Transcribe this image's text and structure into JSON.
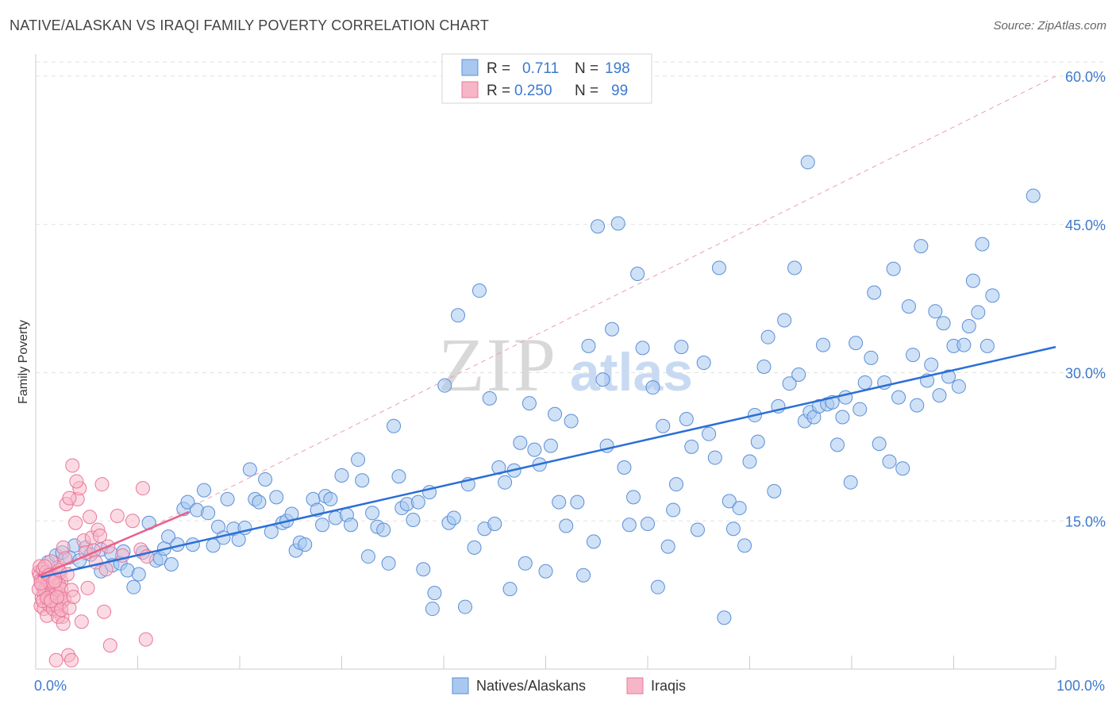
{
  "title": "NATIVE/ALASKAN VS IRAQI FAMILY POVERTY CORRELATION CHART",
  "source": "Source: ZipAtlas.com",
  "watermark": {
    "zip": "ZIP",
    "atlas": "atlas"
  },
  "colors": {
    "blue_fill": "#a8c8f0",
    "blue_stroke": "#5b8fd6",
    "blue_line": "#2a6fd6",
    "pink_fill": "#f7b6c8",
    "pink_stroke": "#e8789a",
    "pink_line": "#e8608a",
    "axis_label": "#3d79cf",
    "grid": "#e2e2e2",
    "ref_line": "#e8a0b0"
  },
  "legend": {
    "rows": [
      {
        "r_label": "R =",
        "r_value": "0.711",
        "n_label": "N =",
        "n_value": "198",
        "series": "blue"
      },
      {
        "r_label": "R =",
        "r_value": "0.250",
        "n_label": "N =",
        "n_value": "99",
        "series": "pink"
      }
    ]
  },
  "bottom_legend": [
    "Natives/Alaskans",
    "Iraqis"
  ],
  "chart_data": {
    "type": "scatter",
    "xlabel": "",
    "ylabel": "Family Poverty",
    "xlim": [
      0,
      100
    ],
    "ylim": [
      0,
      60
    ],
    "x_ticks": [
      0,
      10,
      20,
      30,
      40,
      50,
      60,
      70,
      80,
      90,
      100
    ],
    "x_tick_labels": [
      {
        "value": 0,
        "label": "0.0%"
      },
      {
        "value": 100,
        "label": "100.0%"
      }
    ],
    "y_ticks": [
      {
        "value": 15,
        "label": "15.0%"
      },
      {
        "value": 30,
        "label": "30.0%"
      },
      {
        "value": 45,
        "label": "45.0%"
      },
      {
        "value": 60,
        "label": "60.0%"
      }
    ],
    "grid": true,
    "legend_position": "top-center",
    "reference_line": {
      "style": "dashed",
      "from": [
        0,
        8.6
      ],
      "to": [
        100,
        60
      ]
    },
    "series": [
      {
        "name": "Natives/Alaskans",
        "color": "#a8c8f0",
        "trend": {
          "from": [
            0.5,
            9.3
          ],
          "to": [
            100,
            32.6
          ]
        },
        "points": [
          [
            1.2,
            10.8
          ],
          [
            2.0,
            11.5
          ],
          [
            2.6,
            11.8
          ],
          [
            3.3,
            11.3
          ],
          [
            3.8,
            12.5
          ],
          [
            4.3,
            11.0
          ],
          [
            4.9,
            12.3
          ],
          [
            5.4,
            11.6
          ],
          [
            6.4,
            12.1
          ],
          [
            6.4,
            9.9
          ],
          [
            7.4,
            11.7
          ],
          [
            7.5,
            10.5
          ],
          [
            8.3,
            10.7
          ],
          [
            8.6,
            11.9
          ],
          [
            9.0,
            10.0
          ],
          [
            9.6,
            8.3
          ],
          [
            10.1,
            9.6
          ],
          [
            10.5,
            11.8
          ],
          [
            11.1,
            14.8
          ],
          [
            11.8,
            11.0
          ],
          [
            12.2,
            11.2
          ],
          [
            12.6,
            12.2
          ],
          [
            13.0,
            13.4
          ],
          [
            13.3,
            10.6
          ],
          [
            13.9,
            12.6
          ],
          [
            14.5,
            16.2
          ],
          [
            14.9,
            16.9
          ],
          [
            15.4,
            12.6
          ],
          [
            15.8,
            16.1
          ],
          [
            16.5,
            18.1
          ],
          [
            16.9,
            15.8
          ],
          [
            17.4,
            12.5
          ],
          [
            17.9,
            14.4
          ],
          [
            18.4,
            13.3
          ],
          [
            18.8,
            17.2
          ],
          [
            19.4,
            14.2
          ],
          [
            19.9,
            13.1
          ],
          [
            20.5,
            14.3
          ],
          [
            21.0,
            20.2
          ],
          [
            21.5,
            17.2
          ],
          [
            21.9,
            16.9
          ],
          [
            22.5,
            19.2
          ],
          [
            23.1,
            13.9
          ],
          [
            23.6,
            17.4
          ],
          [
            24.2,
            14.8
          ],
          [
            24.6,
            15.0
          ],
          [
            25.1,
            15.7
          ],
          [
            25.5,
            12.0
          ],
          [
            25.9,
            12.8
          ],
          [
            26.4,
            12.6
          ],
          [
            27.2,
            17.2
          ],
          [
            27.6,
            16.1
          ],
          [
            28.1,
            14.6
          ],
          [
            28.4,
            17.5
          ],
          [
            28.9,
            17.2
          ],
          [
            29.4,
            15.3
          ],
          [
            30.0,
            19.6
          ],
          [
            30.5,
            15.6
          ],
          [
            30.9,
            14.6
          ],
          [
            31.6,
            21.2
          ],
          [
            32.0,
            19.1
          ],
          [
            32.6,
            11.4
          ],
          [
            33.0,
            15.8
          ],
          [
            33.5,
            14.4
          ],
          [
            34.1,
            14.1
          ],
          [
            34.6,
            10.7
          ],
          [
            35.1,
            24.6
          ],
          [
            35.6,
            19.5
          ],
          [
            35.9,
            16.3
          ],
          [
            36.4,
            16.7
          ],
          [
            37.0,
            15.1
          ],
          [
            37.5,
            16.9
          ],
          [
            38.0,
            10.1
          ],
          [
            38.6,
            17.9
          ],
          [
            39.1,
            7.7
          ],
          [
            38.9,
            6.1
          ],
          [
            40.1,
            28.7
          ],
          [
            40.5,
            14.8
          ],
          [
            41.0,
            15.3
          ],
          [
            41.4,
            35.8
          ],
          [
            42.1,
            6.3
          ],
          [
            42.4,
            18.7
          ],
          [
            43.0,
            12.3
          ],
          [
            43.5,
            38.3
          ],
          [
            44.0,
            14.2
          ],
          [
            44.5,
            27.4
          ],
          [
            45.0,
            14.7
          ],
          [
            45.4,
            20.4
          ],
          [
            46.0,
            18.9
          ],
          [
            46.5,
            8.1
          ],
          [
            46.9,
            20.1
          ],
          [
            47.5,
            22.9
          ],
          [
            48.0,
            10.7
          ],
          [
            48.4,
            26.9
          ],
          [
            48.9,
            22.2
          ],
          [
            49.4,
            20.7
          ],
          [
            50.0,
            9.9
          ],
          [
            50.5,
            22.6
          ],
          [
            50.9,
            25.8
          ],
          [
            51.3,
            16.9
          ],
          [
            52.0,
            14.5
          ],
          [
            52.5,
            25.1
          ],
          [
            53.1,
            16.9
          ],
          [
            53.7,
            9.5
          ],
          [
            54.2,
            32.7
          ],
          [
            54.7,
            12.9
          ],
          [
            55.1,
            44.8
          ],
          [
            55.6,
            29.3
          ],
          [
            56.0,
            22.6
          ],
          [
            56.5,
            34.4
          ],
          [
            57.1,
            45.1
          ],
          [
            57.7,
            20.4
          ],
          [
            58.2,
            14.6
          ],
          [
            58.6,
            17.4
          ],
          [
            59.0,
            40.0
          ],
          [
            59.5,
            32.5
          ],
          [
            60.0,
            14.7
          ],
          [
            60.5,
            28.5
          ],
          [
            61.0,
            8.3
          ],
          [
            61.5,
            24.6
          ],
          [
            62.0,
            12.4
          ],
          [
            62.5,
            16.1
          ],
          [
            62.8,
            18.7
          ],
          [
            63.3,
            32.6
          ],
          [
            63.8,
            25.3
          ],
          [
            64.3,
            22.5
          ],
          [
            64.9,
            14.1
          ],
          [
            65.5,
            31.0
          ],
          [
            66.0,
            23.8
          ],
          [
            66.6,
            21.4
          ],
          [
            67.0,
            40.6
          ],
          [
            67.5,
            5.2
          ],
          [
            68.0,
            17.0
          ],
          [
            68.4,
            14.2
          ],
          [
            69.0,
            16.3
          ],
          [
            69.5,
            12.5
          ],
          [
            70.0,
            21.0
          ],
          [
            70.5,
            25.7
          ],
          [
            70.8,
            23.0
          ],
          [
            71.4,
            30.6
          ],
          [
            71.8,
            33.6
          ],
          [
            72.4,
            18.0
          ],
          [
            72.8,
            26.6
          ],
          [
            73.4,
            35.3
          ],
          [
            73.9,
            28.9
          ],
          [
            74.4,
            40.6
          ],
          [
            74.8,
            29.8
          ],
          [
            75.4,
            25.1
          ],
          [
            75.9,
            26.0
          ],
          [
            76.3,
            25.5
          ],
          [
            76.8,
            26.6
          ],
          [
            77.2,
            32.8
          ],
          [
            77.6,
            26.8
          ],
          [
            78.1,
            27.0
          ],
          [
            78.6,
            22.7
          ],
          [
            79.1,
            25.5
          ],
          [
            79.4,
            27.5
          ],
          [
            79.9,
            18.9
          ],
          [
            80.4,
            33.0
          ],
          [
            80.8,
            26.3
          ],
          [
            81.3,
            29.0
          ],
          [
            81.9,
            31.5
          ],
          [
            82.2,
            38.1
          ],
          [
            82.7,
            22.8
          ],
          [
            83.2,
            29.0
          ],
          [
            83.7,
            21.0
          ],
          [
            84.1,
            40.5
          ],
          [
            84.6,
            27.5
          ],
          [
            85.0,
            20.3
          ],
          [
            85.6,
            36.7
          ],
          [
            86.0,
            31.8
          ],
          [
            86.4,
            26.7
          ],
          [
            86.8,
            42.8
          ],
          [
            87.4,
            29.2
          ],
          [
            87.8,
            30.8
          ],
          [
            88.2,
            36.2
          ],
          [
            88.6,
            27.7
          ],
          [
            89.0,
            35.0
          ],
          [
            89.5,
            29.6
          ],
          [
            90.0,
            32.7
          ],
          [
            90.5,
            28.6
          ],
          [
            91.0,
            32.8
          ],
          [
            91.5,
            34.7
          ],
          [
            91.9,
            39.3
          ],
          [
            92.4,
            36.1
          ],
          [
            92.8,
            43.0
          ],
          [
            93.3,
            32.7
          ],
          [
            93.8,
            37.8
          ],
          [
            75.7,
            51.3
          ],
          [
            97.8,
            47.9
          ]
        ]
      },
      {
        "name": "Iraqis",
        "color": "#f7b6c8",
        "trend": {
          "from": [
            0.2,
            9.4
          ],
          "to": [
            15,
            15.9
          ]
        },
        "points": [
          [
            0.3,
            9.8
          ],
          [
            0.4,
            9.5
          ],
          [
            0.5,
            9.0
          ],
          [
            0.6,
            8.5
          ],
          [
            0.7,
            8.8
          ],
          [
            0.8,
            7.8
          ],
          [
            0.9,
            9.2
          ],
          [
            1.0,
            8.3
          ],
          [
            1.1,
            7.9
          ],
          [
            1.2,
            7.1
          ],
          [
            1.3,
            9.6
          ],
          [
            1.4,
            8.6
          ],
          [
            1.5,
            6.6
          ],
          [
            1.6,
            7.6
          ],
          [
            1.7,
            9.1
          ],
          [
            1.8,
            8.0
          ],
          [
            1.9,
            5.9
          ],
          [
            2.0,
            7.4
          ],
          [
            2.1,
            8.5
          ],
          [
            2.2,
            10.3
          ],
          [
            2.3,
            6.6
          ],
          [
            2.4,
            7.5
          ],
          [
            2.5,
            8.9
          ],
          [
            2.6,
            5.3
          ],
          [
            2.7,
            12.3
          ],
          [
            0.4,
            10.4
          ],
          [
            0.5,
            6.4
          ],
          [
            0.6,
            7.2
          ],
          [
            0.7,
            10.1
          ],
          [
            0.8,
            6.1
          ],
          [
            0.9,
            8.0
          ],
          [
            1.0,
            9.8
          ],
          [
            1.1,
            5.4
          ],
          [
            1.2,
            8.8
          ],
          [
            1.3,
            6.5
          ],
          [
            1.4,
            7.0
          ],
          [
            1.5,
            10.9
          ],
          [
            1.6,
            9.4
          ],
          [
            1.7,
            6.1
          ],
          [
            1.8,
            8.4
          ],
          [
            1.9,
            9.3
          ],
          [
            2.0,
            7.7
          ],
          [
            2.1,
            6.4
          ],
          [
            2.2,
            5.3
          ],
          [
            2.3,
            8.5
          ],
          [
            2.4,
            9.8
          ],
          [
            2.5,
            8.1
          ],
          [
            2.6,
            6.8
          ],
          [
            2.7,
            4.6
          ],
          [
            2.8,
            7.1
          ],
          [
            0.3,
            8.1
          ],
          [
            0.5,
            8.7
          ],
          [
            0.7,
            6.9
          ],
          [
            0.9,
            10.4
          ],
          [
            1.1,
            7.2
          ],
          [
            1.3,
            9.5
          ],
          [
            1.5,
            6.9
          ],
          [
            1.7,
            8.8
          ],
          [
            1.9,
            8.9
          ],
          [
            2.1,
            7.3
          ],
          [
            2.3,
            10.0
          ],
          [
            2.5,
            6.0
          ],
          [
            2.9,
            11.2
          ],
          [
            3.1,
            9.6
          ],
          [
            3.3,
            6.2
          ],
          [
            3.5,
            8.0
          ],
          [
            3.7,
            7.3
          ],
          [
            3.9,
            14.8
          ],
          [
            4.1,
            17.2
          ],
          [
            4.3,
            18.3
          ],
          [
            4.5,
            4.8
          ],
          [
            4.7,
            13.0
          ],
          [
            4.9,
            11.8
          ],
          [
            5.1,
            8.2
          ],
          [
            5.3,
            15.4
          ],
          [
            5.5,
            13.3
          ],
          [
            5.7,
            12.0
          ],
          [
            5.9,
            10.8
          ],
          [
            6.1,
            14.1
          ],
          [
            6.3,
            13.5
          ],
          [
            6.5,
            18.7
          ],
          [
            6.7,
            5.8
          ],
          [
            6.9,
            10.1
          ],
          [
            7.1,
            12.4
          ],
          [
            7.3,
            2.4
          ],
          [
            8.0,
            15.5
          ],
          [
            8.5,
            11.5
          ],
          [
            9.5,
            15.0
          ],
          [
            10.3,
            12.1
          ],
          [
            10.5,
            18.3
          ],
          [
            10.9,
            11.4
          ],
          [
            3.0,
            16.7
          ],
          [
            3.3,
            17.3
          ],
          [
            3.6,
            20.6
          ],
          [
            4.0,
            19.0
          ],
          [
            3.2,
            1.4
          ],
          [
            3.5,
            0.9
          ],
          [
            2.0,
            0.9
          ],
          [
            10.8,
            3.0
          ]
        ]
      }
    ]
  }
}
